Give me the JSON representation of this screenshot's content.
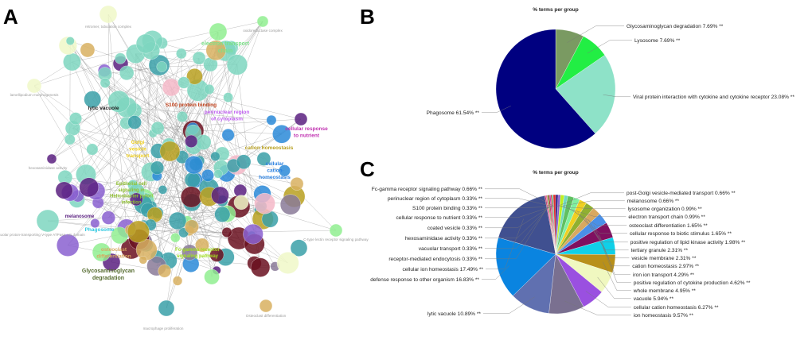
{
  "panels": {
    "a": "A",
    "b": "B",
    "c": "C"
  },
  "network": {
    "group_labels": [
      {
        "text": "electron transport chain",
        "color": "#7de08a"
      },
      {
        "text": "S100 protein binding",
        "color": "#c0401a"
      },
      {
        "text": "perinuclear region of cytoplasm",
        "color": "#c060f0"
      },
      {
        "text": "cellular response to nutrient",
        "color": "#c030b0"
      },
      {
        "text": "cation homeostasis",
        "color": "#b8a020"
      },
      {
        "text": "cellular cation homeostasis",
        "color": "#2a80e0"
      },
      {
        "text": "Golgi vesicle transport",
        "color": "#f0d020"
      },
      {
        "text": "Epithelial cell signaling in Helicobacter pylori infection",
        "color": "#90c030"
      },
      {
        "text": "Phagosome",
        "color": "#30c8e0"
      },
      {
        "text": "osteoclast differentiation",
        "color": "#d8a860"
      },
      {
        "text": "Glycosaminoglycan degradation",
        "color": "#556b2f"
      },
      {
        "text": "Fc-gamma receptor signaling pathway",
        "color": "#a0e020"
      },
      {
        "text": "melanosome",
        "color": "#5a2080"
      },
      {
        "text": "lytic vacuole",
        "color": "#222222"
      }
    ],
    "term_labels": [
      "retromer, tubulation complex",
      "oxidoreductase complex",
      "lamellipodium morphogenesis",
      "vacuolar proton-transporting V-type ATPase, V1 domain",
      "C-type lectin receptor signaling pathway",
      "Osteoclast differentiation",
      "macrophage proliferation",
      "hexosaminidase activity"
    ],
    "node_colors": [
      "#7ed6bf",
      "#3aa0a8",
      "#6a1020",
      "#f0f8c8",
      "#2a8ad8",
      "#8a60d0",
      "#f4b8c8",
      "#d8b060",
      "#90ee90",
      "#8a7a98",
      "#b8a020",
      "#5a2080"
    ]
  },
  "chart_data": [
    {
      "type": "pie",
      "title": "% terms per group",
      "categories": [
        "Glycosaminoglycan degradation",
        "Lysosome",
        "Viral protein interaction with cytokine and cytokine receptor",
        "Phagosome"
      ],
      "values": [
        7.69,
        7.69,
        23.08,
        61.54
      ],
      "labels": [
        "Glycosaminoglycan degradation 7.69% **",
        "Lysosome 7.69% **",
        "Viral protein interaction with cytokine and cytokine receptor 23.08% **",
        "Phagosome 61.54% **"
      ],
      "colors": [
        "#7a9a62",
        "#22ee44",
        "#8ee2c8",
        "#000080"
      ]
    },
    {
      "type": "pie",
      "title": "% terms per group",
      "categories": [
        "post-Golgi vesicle-mediated transport",
        "melanosome",
        "lysosome organization",
        "electron transport chain",
        "osteoclast differentiation",
        "cellular response to biotic stimulus",
        "positive regulation of lipid kinase activity",
        "tertiary granule",
        "vesicle membrane",
        "cation homeostasis",
        "iron ion transport",
        "positive regulation of cytokine production",
        "whole membrane",
        "vacuole",
        "cellular cation homeostasis",
        "ion homeostasis",
        "lytic vacuole",
        "defense response to other organism",
        "cellular ion homeostasis",
        "receptor-mediated endocytosis",
        "vacuolar transport",
        "hexosaminidase activity",
        "coated vesicle",
        "cellular response to nutrient",
        "S100 protein binding",
        "perinuclear region of cytoplasm",
        "Fc-gamma receptor signaling pathway"
      ],
      "values": [
        0.66,
        0.66,
        0.99,
        0.99,
        1.65,
        1.65,
        1.98,
        2.31,
        2.31,
        2.97,
        4.29,
        4.62,
        4.95,
        5.94,
        6.27,
        9.57,
        10.89,
        16.83,
        17.49,
        0.33,
        0.33,
        0.33,
        0.33,
        0.33,
        0.33,
        0.33,
        0.66
      ],
      "labels": [
        "post-Golgi vesicle-mediated transport 0.66% **",
        "melanosome 0.66% **",
        "lysosome organization 0.99% **",
        "electron transport chain 0.99% **",
        "osteoclast differentiation 1.65% **",
        "cellular response to biotic stimulus 1.65% **",
        "positive regulation of lipid kinase activity 1.98% **",
        "tertiary granule 2.31% **",
        "vesicle membrane 2.31% **",
        "cation homeostasis 2.97% **",
        "iron ion transport 4.29% **",
        "positive regulation of cytokine production 4.62% **",
        "whole membrane 4.95% **",
        "vacuole 5.94% **",
        "cellular cation homeostasis 6.27% **",
        "ion homeostasis 9.57% **",
        "lytic vacuole 10.89% **",
        "defense response to other organism 16.83% **",
        "cellular ion homeostasis 17.49% **",
        "receptor-mediated endocytosis 0.33% **",
        "vacuolar transport 0.33% **",
        "hexosaminidase activity 0.33% **",
        "coated vesicle 0.33% **",
        "cellular response to nutrient 0.33% **",
        "S100 protein binding 0.33% **",
        "perinuclear region of cytoplasm 0.33% **",
        "Fc-gamma receptor signaling pathway 0.66% **"
      ],
      "colors": [
        "#2a1a80",
        "#8a60d0",
        "#c0f020",
        "#70d8c0",
        "#60c060",
        "#80f0a0",
        "#f0d020",
        "#90b030",
        "#d8a860",
        "#4a90e8",
        "#801060",
        "#10d0e8",
        "#b8901a",
        "#f0f8c0",
        "#9a50e0",
        "#7a7090",
        "#6070b0",
        "#0a84e0",
        "#405090",
        "#c03060",
        "#f060a0",
        "#60a020",
        "#a02020",
        "#c030b0",
        "#c0401a",
        "#40c0a0",
        "#e03030"
      ]
    }
  ]
}
